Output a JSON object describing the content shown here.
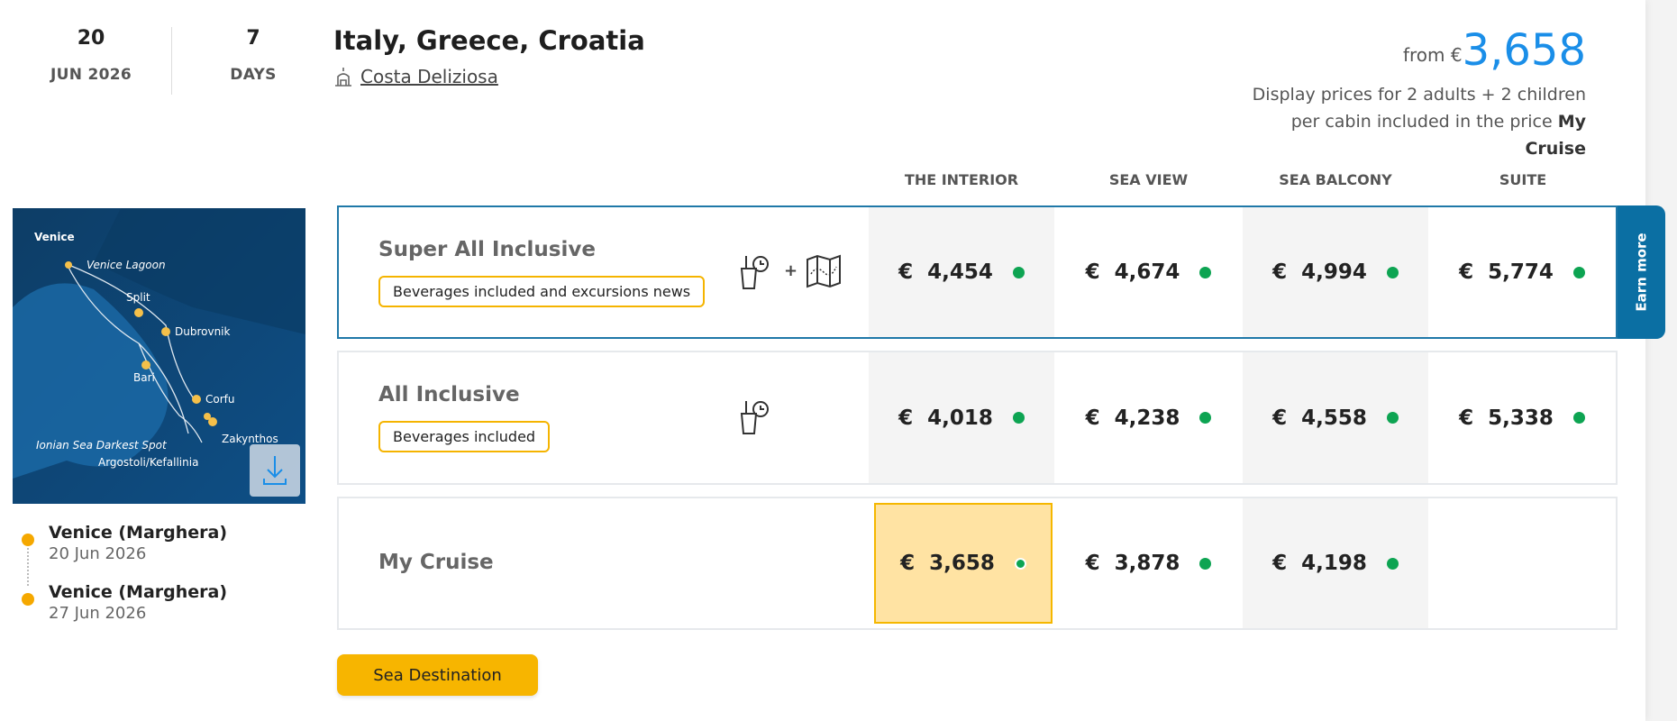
{
  "header": {
    "day": "20",
    "month_year": "JUN 2026",
    "days_count": "7",
    "days_label": "DAYS",
    "title": "Italy, Greece, Croatia",
    "ship": "Costa Deliziosa",
    "from_label": "from €",
    "from_price": "3,658",
    "note_text": "Display prices for 2 adults + 2 children per cabin included in the price ",
    "note_bold": "My Cruise"
  },
  "columns": [
    "THE INTERIOR",
    "SEA VIEW",
    "SEA BALCONY",
    "SUITE"
  ],
  "rows": [
    {
      "label": "Super All Inclusive",
      "badge": "Beverages included and excursions news",
      "icons": [
        "beverages-icon",
        "excursions-map-icon"
      ],
      "plus": "+",
      "prices": [
        "€  4,454",
        "€  4,674",
        "€  4,994",
        "€  5,774"
      ],
      "selected": true
    },
    {
      "label": "All Inclusive",
      "badge": "Beverages included",
      "icons": [
        "beverages-icon"
      ],
      "prices": [
        "€  4,018",
        "€  4,238",
        "€  4,558",
        "€  5,338"
      ]
    },
    {
      "label": "My Cruise",
      "prices": [
        "€  3,658",
        "€  3,878",
        "€  4,198",
        ""
      ],
      "highlighted_column": 0
    }
  ],
  "earn_more": "Earn more",
  "button": "Sea Destination",
  "map": {
    "ports": [
      "Venice",
      "Venice Lagoon",
      "Split",
      "Dubrovnik",
      "Bari",
      "Corfu",
      "Zakynthos",
      "Ionian Sea Darkest Spot",
      "Argostoli/Kefallinia"
    ],
    "download_icon": "download-icon"
  },
  "itinerary": [
    {
      "port": "Venice (Marghera)",
      "date": "20 Jun 2026"
    },
    {
      "port": "Venice (Marghera)",
      "date": "27 Jun 2026"
    }
  ],
  "colors": {
    "accent": "#1a8ee8",
    "selected_border": "#1f78a8",
    "badge_border": "#f5b400",
    "available": "#0da452",
    "highlight": "#ffe3a3"
  }
}
